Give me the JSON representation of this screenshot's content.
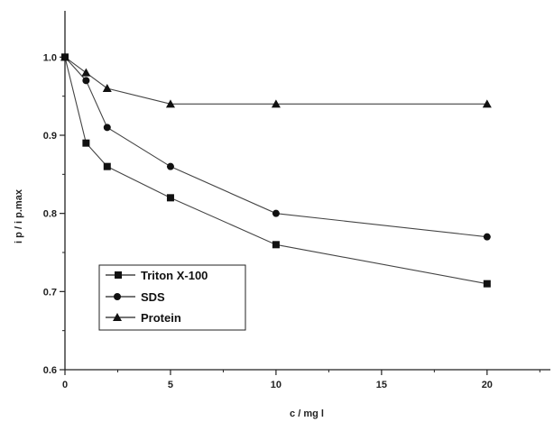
{
  "chart_data": {
    "type": "line",
    "title": "",
    "xlabel": "c / mg l",
    "ylabel": "i p / i p.max",
    "xlim": [
      0,
      23
    ],
    "ylim": [
      0.6,
      1.05
    ],
    "x_ticks": [
      0,
      5,
      10,
      15,
      20
    ],
    "y_ticks": [
      0.6,
      0.7,
      0.8,
      0.9,
      1.0
    ],
    "x_tick_labels": [
      "0",
      "5",
      "10",
      "15",
      "20"
    ],
    "y_tick_labels": [
      "0.6",
      "0.7",
      "0.8",
      "0.9",
      "1.0"
    ],
    "grid": false,
    "legend_position": "bottom-left",
    "series": [
      {
        "name": "Triton X-100",
        "marker": "square",
        "x": [
          0,
          1,
          2,
          5,
          10,
          20
        ],
        "values": [
          1.0,
          0.89,
          0.86,
          0.82,
          0.76,
          0.71
        ]
      },
      {
        "name": "SDS",
        "marker": "circle",
        "x": [
          0,
          1,
          2,
          5,
          10,
          20
        ],
        "values": [
          1.0,
          0.97,
          0.91,
          0.86,
          0.8,
          0.77
        ]
      },
      {
        "name": "Protein",
        "marker": "triangle",
        "x": [
          0,
          1,
          2,
          5,
          10,
          20
        ],
        "values": [
          1.0,
          0.98,
          0.96,
          0.94,
          0.94,
          0.94
        ]
      }
    ],
    "colors": {
      "line": "#444444",
      "marker": "#111111",
      "axis": "#222222"
    }
  }
}
